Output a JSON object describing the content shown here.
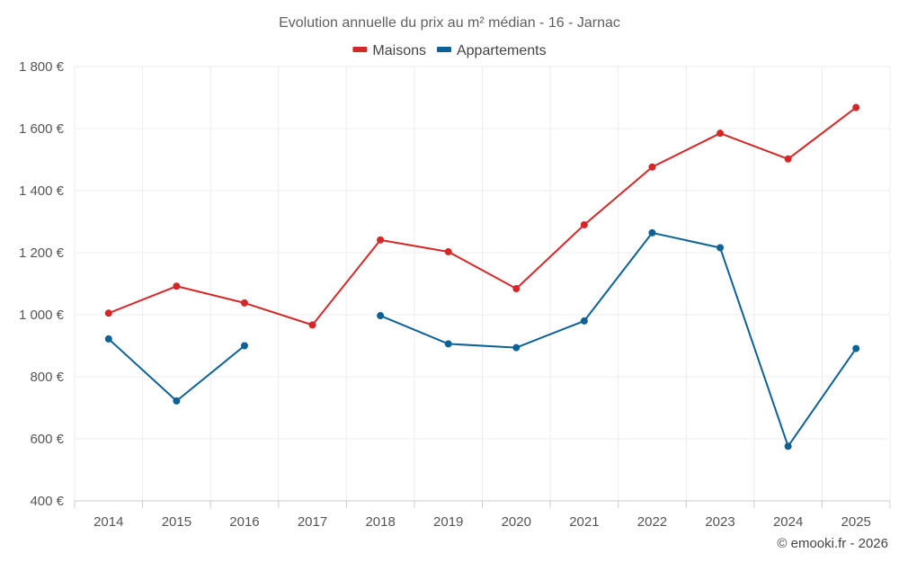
{
  "chart_data": {
    "type": "line",
    "title": "Evolution annuelle du prix au m² médian - 16 - Jarnac",
    "categories": [
      "2014",
      "2015",
      "2016",
      "2017",
      "2018",
      "2019",
      "2020",
      "2021",
      "2022",
      "2023",
      "2024",
      "2025"
    ],
    "series": [
      {
        "name": "Maisons",
        "color": "#d62728",
        "values": [
          1005,
          1092,
          1038,
          967,
          1241,
          1203,
          1084,
          1290,
          1476,
          1585,
          1502,
          1668
        ]
      },
      {
        "name": "Appartements",
        "color": "#0c6196",
        "values": [
          922,
          722,
          900,
          null,
          997,
          906,
          894,
          980,
          1264,
          1216,
          576,
          891
        ]
      }
    ],
    "y_ticks": [
      400,
      600,
      800,
      1000,
      1200,
      1400,
      1600,
      1800
    ],
    "y_tick_labels": [
      "400 €",
      "600 €",
      "800 €",
      "1 000 €",
      "1 200 €",
      "1 400 €",
      "1 600 €",
      "1 800 €"
    ],
    "ylim": [
      400,
      1800
    ],
    "xlabel": "",
    "ylabel": "",
    "grid": true,
    "legend_position": "top-center"
  },
  "credit": "© emooki.fr - 2026"
}
